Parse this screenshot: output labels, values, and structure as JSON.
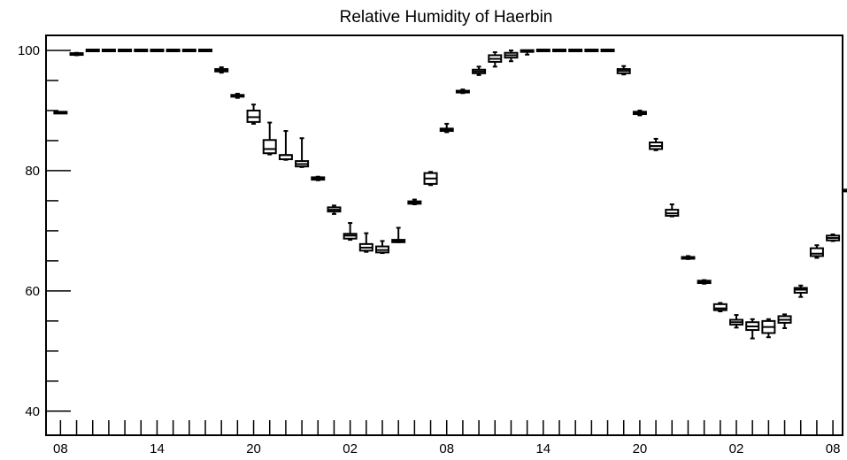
{
  "chart_data": {
    "type": "box",
    "title": "Relative Humidity of Haerbin",
    "xlabel": "",
    "ylabel": "",
    "ylim": [
      36,
      102.5
    ],
    "yticks": [
      40,
      60,
      80,
      100
    ],
    "xtick_labels": [
      "08",
      "14",
      "20",
      "02",
      "08",
      "14",
      "20",
      "02",
      "08"
    ],
    "xtick_label_positions": [
      0,
      6,
      12,
      18,
      24,
      30,
      36,
      42,
      48
    ],
    "xlim": [
      -0.9,
      48.6
    ],
    "grid": false,
    "legend": "none",
    "boxes": [
      {
        "x": 0,
        "min": 89.6,
        "q1": 89.6,
        "median": 89.6,
        "q3": 89.7,
        "max": 89.7
      },
      {
        "x": 1,
        "min": 99.2,
        "q1": 99.3,
        "median": 99.4,
        "q3": 99.5,
        "max": 99.6
      },
      {
        "x": 2,
        "min": 100,
        "q1": 100,
        "median": 100,
        "q3": 100,
        "max": 100
      },
      {
        "x": 3,
        "min": 100,
        "q1": 100,
        "median": 100,
        "q3": 100,
        "max": 100
      },
      {
        "x": 4,
        "min": 100,
        "q1": 100,
        "median": 100,
        "q3": 100,
        "max": 100
      },
      {
        "x": 5,
        "min": 100,
        "q1": 100,
        "median": 100,
        "q3": 100,
        "max": 100
      },
      {
        "x": 6,
        "min": 100,
        "q1": 100,
        "median": 100,
        "q3": 100,
        "max": 100
      },
      {
        "x": 7,
        "min": 100,
        "q1": 100,
        "median": 100,
        "q3": 100,
        "max": 100
      },
      {
        "x": 8,
        "min": 100,
        "q1": 100,
        "median": 100,
        "q3": 100,
        "max": 100
      },
      {
        "x": 9,
        "min": 100,
        "q1": 100,
        "median": 100,
        "q3": 100,
        "max": 100
      },
      {
        "x": 10,
        "min": 96.3,
        "q1": 96.5,
        "median": 96.7,
        "q3": 96.9,
        "max": 97.2
      },
      {
        "x": 11,
        "min": 92.1,
        "q1": 92.3,
        "median": 92.4,
        "q3": 92.6,
        "max": 92.8
      },
      {
        "x": 12,
        "min": 87.8,
        "q1": 88.1,
        "median": 88.9,
        "q3": 90.0,
        "max": 91.0
      },
      {
        "x": 13,
        "min": 82.7,
        "q1": 82.9,
        "median": 83.6,
        "q3": 85.1,
        "max": 88.0
      },
      {
        "x": 14,
        "min": 81.8,
        "q1": 81.9,
        "median": 82.6,
        "q3": 82.6,
        "max": 86.6
      },
      {
        "x": 15,
        "min": 80.6,
        "q1": 80.7,
        "median": 81.1,
        "q3": 81.6,
        "max": 85.4
      },
      {
        "x": 16,
        "min": 78.4,
        "q1": 78.5,
        "median": 78.7,
        "q3": 78.9,
        "max": 79.0
      },
      {
        "x": 17,
        "min": 72.8,
        "q1": 73.2,
        "median": 73.5,
        "q3": 73.9,
        "max": 74.2
      },
      {
        "x": 18,
        "min": 68.5,
        "q1": 68.7,
        "median": 69.2,
        "q3": 69.5,
        "max": 71.3
      },
      {
        "x": 19,
        "min": 66.5,
        "q1": 66.7,
        "median": 67.2,
        "q3": 67.8,
        "max": 69.6
      },
      {
        "x": 20,
        "min": 66.3,
        "q1": 66.4,
        "median": 66.8,
        "q3": 67.4,
        "max": 68.3
      },
      {
        "x": 21,
        "min": 68.1,
        "q1": 68.1,
        "median": 68.3,
        "q3": 68.5,
        "max": 70.5
      },
      {
        "x": 22,
        "min": 74.4,
        "q1": 74.5,
        "median": 74.7,
        "q3": 74.9,
        "max": 75.2
      },
      {
        "x": 23,
        "min": 77.6,
        "q1": 77.8,
        "median": 78.7,
        "q3": 79.6,
        "max": 79.8
      },
      {
        "x": 24,
        "min": 86.4,
        "q1": 86.6,
        "median": 86.8,
        "q3": 87.0,
        "max": 87.8
      },
      {
        "x": 25,
        "min": 92.9,
        "q1": 93.0,
        "median": 93.2,
        "q3": 93.3,
        "max": 93.5
      },
      {
        "x": 26,
        "min": 95.9,
        "q1": 96.2,
        "median": 96.5,
        "q3": 96.8,
        "max": 97.3
      },
      {
        "x": 27,
        "min": 97.3,
        "q1": 98.1,
        "median": 98.6,
        "q3": 99.2,
        "max": 99.7
      },
      {
        "x": 28,
        "min": 98.2,
        "q1": 98.8,
        "median": 99.2,
        "q3": 99.6,
        "max": 100
      },
      {
        "x": 29,
        "min": 99.3,
        "q1": 99.8,
        "median": 100,
        "q3": 100,
        "max": 100
      },
      {
        "x": 30,
        "min": 100,
        "q1": 100,
        "median": 100,
        "q3": 100,
        "max": 100
      },
      {
        "x": 31,
        "min": 100,
        "q1": 100,
        "median": 100,
        "q3": 100,
        "max": 100
      },
      {
        "x": 32,
        "min": 100,
        "q1": 100,
        "median": 100,
        "q3": 100,
        "max": 100
      },
      {
        "x": 33,
        "min": 100,
        "q1": 100,
        "median": 100,
        "q3": 100,
        "max": 100
      },
      {
        "x": 34,
        "min": 100,
        "q1": 100,
        "median": 100,
        "q3": 100,
        "max": 100
      },
      {
        "x": 35,
        "min": 96.0,
        "q1": 96.2,
        "median": 96.6,
        "q3": 96.9,
        "max": 97.4
      },
      {
        "x": 36,
        "min": 89.2,
        "q1": 89.4,
        "median": 89.6,
        "q3": 89.8,
        "max": 90.0
      },
      {
        "x": 37,
        "min": 83.4,
        "q1": 83.6,
        "median": 84.1,
        "q3": 84.7,
        "max": 85.3
      },
      {
        "x": 38,
        "min": 72.4,
        "q1": 72.5,
        "median": 72.9,
        "q3": 73.5,
        "max": 74.4
      },
      {
        "x": 39,
        "min": 65.3,
        "q1": 65.4,
        "median": 65.5,
        "q3": 65.6,
        "max": 65.8
      },
      {
        "x": 40,
        "min": 61.2,
        "q1": 61.3,
        "median": 61.5,
        "q3": 61.7,
        "max": 61.8
      },
      {
        "x": 41,
        "min": 56.6,
        "q1": 56.8,
        "median": 57.1,
        "q3": 57.8,
        "max": 58.0
      },
      {
        "x": 42,
        "min": 53.9,
        "q1": 54.4,
        "median": 54.8,
        "q3": 55.2,
        "max": 56.0
      },
      {
        "x": 43,
        "min": 52.1,
        "q1": 53.5,
        "median": 54.1,
        "q3": 54.8,
        "max": 55.3
      },
      {
        "x": 44,
        "min": 52.3,
        "q1": 53.0,
        "median": 54.0,
        "q3": 55.0,
        "max": 55.3
      },
      {
        "x": 45,
        "min": 53.8,
        "q1": 54.7,
        "median": 55.2,
        "q3": 55.8,
        "max": 56.1
      },
      {
        "x": 46,
        "min": 59.0,
        "q1": 59.7,
        "median": 60.2,
        "q3": 60.5,
        "max": 60.9
      },
      {
        "x": 47,
        "min": 65.5,
        "q1": 65.8,
        "median": 66.2,
        "q3": 67.1,
        "max": 67.6
      },
      {
        "x": 48,
        "min": 68.3,
        "q1": 68.4,
        "median": 68.8,
        "q3": 69.2,
        "max": 69.4
      },
      {
        "x": 49,
        "min": 76.5,
        "q1": 76.6,
        "median": 76.7,
        "q3": 76.8,
        "max": 76.9
      }
    ]
  }
}
